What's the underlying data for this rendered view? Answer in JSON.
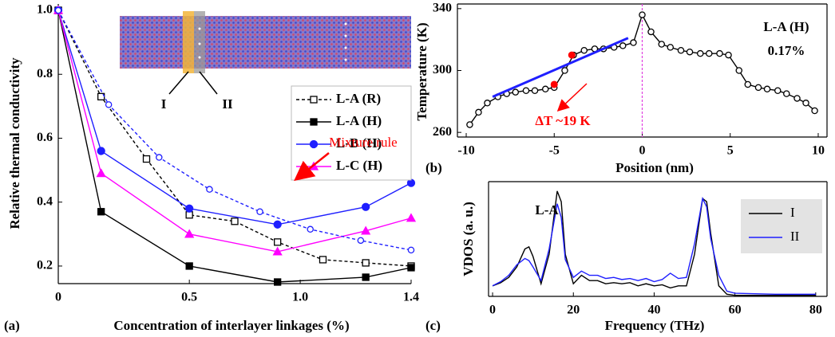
{
  "chart_data": [
    {
      "type": "line",
      "panel_label": "(a)",
      "x_label": "Concentration of interlayer linkages (%)",
      "y_label": "Relative thermal conductivity",
      "xlim": [
        0,
        1.4
      ],
      "ylim": [
        0.145,
        1.02
      ],
      "xticks": [
        0,
        {
          "value": 0.52,
          "label": "0.5"
        },
        {
          "value": 0.96,
          "label": "1.0"
        },
        1.4
      ],
      "yticks": [
        0.2,
        0.4,
        0.6,
        0.8,
        {
          "value": 1,
          "label": "1.0"
        }
      ],
      "legend": "right",
      "inset_labels": [
        "I",
        "II"
      ],
      "series": [
        {
          "name": "L-A (R)",
          "color": "#000000",
          "dash": true,
          "marker": "square-open",
          "x": [
            0,
            0.17,
            0.35,
            0.52,
            0.7,
            0.87,
            1.05,
            1.22,
            1.4
          ],
          "values": [
            1.0,
            0.73,
            0.535,
            0.36,
            0.34,
            0.275,
            0.22,
            0.21,
            0.2
          ]
        },
        {
          "name": "L-A (H)",
          "color": "#000000",
          "dash": false,
          "marker": "square",
          "x": [
            0,
            0.17,
            0.52,
            0.87,
            1.22,
            1.4
          ],
          "values": [
            1.0,
            0.37,
            0.2,
            0.15,
            0.165,
            0.195
          ]
        },
        {
          "name": "L-B (H)",
          "color": "#1f1fff",
          "dash": false,
          "marker": "circle",
          "x": [
            0,
            0.17,
            0.52,
            0.87,
            1.22,
            1.4
          ],
          "values": [
            1.0,
            0.56,
            0.38,
            0.33,
            0.385,
            0.46
          ]
        },
        {
          "name": "L-C (H)",
          "color": "#ff00ff",
          "dash": false,
          "marker": "triangle",
          "x": [
            0,
            0.17,
            0.52,
            0.87,
            1.22,
            1.4
          ],
          "values": [
            1.0,
            0.49,
            0.3,
            0.245,
            0.31,
            0.35
          ]
        },
        {
          "name": "Mixture rule",
          "color": "#1f1fff",
          "dash": true,
          "marker": "circle-open",
          "show_in_legend": false,
          "annotation_color": "#ff0000",
          "x": [
            0,
            0.2,
            0.4,
            0.6,
            0.8,
            1.0,
            1.2,
            1.4
          ],
          "values": [
            1.0,
            0.705,
            0.54,
            0.44,
            0.37,
            0.315,
            0.28,
            0.25
          ]
        }
      ]
    },
    {
      "type": "line",
      "panel_label": "(b)",
      "x_label": "Position (nm)",
      "y_label": "Temperature (K)",
      "annotations": [
        "L-A (H)",
        "0.17%"
      ],
      "delta_label": "ΔT ~19 K",
      "delta_color": "#ff0000",
      "xlim": [
        -10.5,
        10.5
      ],
      "ylim": [
        257,
        343
      ],
      "xticks": [
        -10,
        -5,
        0,
        5,
        10
      ],
      "yticks": [
        260,
        300,
        340
      ],
      "series": [
        {
          "color": "#000000",
          "dash": false,
          "marker": "circle-open",
          "x": [
            -9.8,
            -9.3,
            -8.8,
            -8.2,
            -7.7,
            -7.2,
            -6.6,
            -6.1,
            -5.5,
            -5.0,
            -4.4,
            -3.9,
            -3.3,
            -2.7,
            -2.2,
            -1.6,
            -1.1,
            -0.5,
            0,
            0.5,
            1.1,
            1.6,
            2.2,
            2.7,
            3.3,
            3.8,
            4.4,
            4.9,
            5.5,
            6.0,
            6.6,
            7.1,
            7.7,
            8.2,
            8.8,
            9.3,
            9.8
          ],
          "values": [
            265,
            273,
            279,
            283,
            285,
            286,
            287,
            287,
            288,
            289,
            300,
            310,
            313,
            314,
            314,
            315,
            316,
            318,
            336,
            325,
            317,
            315,
            313,
            312,
            311,
            311,
            311,
            310,
            300,
            291,
            289,
            288,
            287,
            285,
            282,
            279,
            274
          ]
        }
      ],
      "fit_line": {
        "color": "#1f1fff",
        "x": [
          -8.5,
          -0.8
        ],
        "values": [
          283,
          321
        ]
      },
      "highlight_points": {
        "color": "#ff0000",
        "x": [
          -5,
          -4
        ],
        "values": [
          291,
          310
        ]
      },
      "reference_line": {
        "color": "#e040e0",
        "x": 0
      }
    },
    {
      "type": "line",
      "panel_label": "(c)",
      "x_label": "Frequency (THz)",
      "y_label": "VDOS (a. u.)",
      "annotations": [
        "L-A"
      ],
      "xlim": [
        -1,
        82.8
      ],
      "ylim": [
        0,
        1.09
      ],
      "xticks": [
        0,
        20,
        40,
        60,
        80
      ],
      "legend": "upper right",
      "x": [
        0,
        2,
        4,
        6,
        8,
        9,
        10,
        12,
        14,
        16,
        17,
        18,
        20,
        22,
        24,
        26,
        28,
        30,
        32,
        34,
        36,
        38,
        40,
        42,
        44,
        46,
        48,
        50,
        52,
        53,
        54,
        56,
        58,
        60,
        70,
        80
      ],
      "series": [
        {
          "name": "I",
          "color": "#000000",
          "values": [
            0.1,
            0.13,
            0.18,
            0.28,
            0.45,
            0.47,
            0.38,
            0.12,
            0.4,
            1.0,
            0.9,
            0.4,
            0.12,
            0.2,
            0.15,
            0.15,
            0.12,
            0.13,
            0.12,
            0.13,
            0.1,
            0.12,
            0.1,
            0.11,
            0.08,
            0.1,
            0.1,
            0.4,
            0.93,
            0.9,
            0.6,
            0.1,
            0.02,
            0.01,
            0.01,
            0.01
          ]
        },
        {
          "name": "II",
          "color": "#1f1fff",
          "values": [
            0.1,
            0.14,
            0.2,
            0.3,
            0.36,
            0.34,
            0.28,
            0.15,
            0.45,
            0.88,
            0.75,
            0.35,
            0.18,
            0.24,
            0.2,
            0.2,
            0.17,
            0.18,
            0.16,
            0.17,
            0.15,
            0.17,
            0.14,
            0.16,
            0.22,
            0.17,
            0.18,
            0.5,
            0.93,
            0.85,
            0.55,
            0.2,
            0.05,
            0.03,
            0.02,
            0.02
          ]
        }
      ]
    }
  ]
}
